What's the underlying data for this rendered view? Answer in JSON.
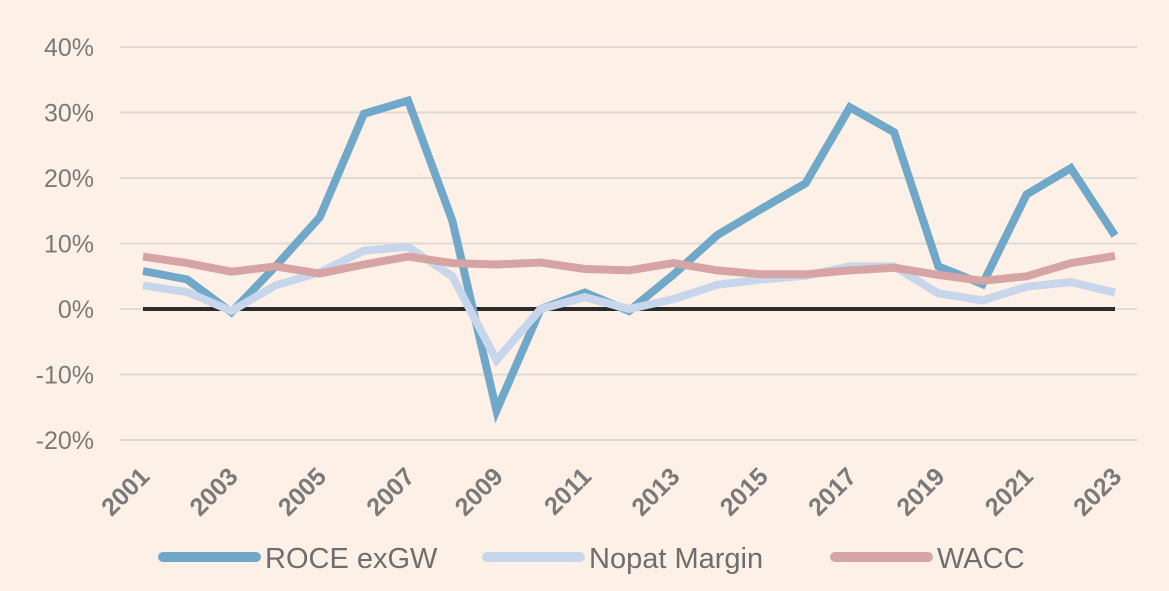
{
  "chart_data": {
    "type": "line",
    "x": [
      "2001",
      "2002",
      "2003",
      "2004",
      "2005",
      "2006",
      "2007",
      "2008",
      "2009",
      "2010",
      "2011",
      "2012",
      "2013",
      "2014",
      "2015",
      "2016",
      "2017",
      "2018",
      "2019",
      "2020",
      "2021",
      "2022",
      "2023"
    ],
    "x_tick_labels": [
      "2001",
      "2003",
      "2005",
      "2007",
      "2009",
      "2011",
      "2013",
      "2015",
      "2017",
      "2019",
      "2021",
      "2023"
    ],
    "y_tick_labels": [
      "40%",
      "30%",
      "20%",
      "10%",
      "0%",
      "-10%",
      "-20%"
    ],
    "y_tick_values": [
      40,
      30,
      20,
      10,
      0,
      -10,
      -20
    ],
    "ylim": [
      -20,
      40
    ],
    "grid": true,
    "legend_position": "bottom",
    "series": [
      {
        "name": "ROCE exGW",
        "color": "#6fa8c8",
        "values": [
          5.8,
          4.5,
          -0.5,
          6.5,
          14,
          29.8,
          31.8,
          13.5,
          -15.5,
          0,
          2.5,
          -0.3,
          5.2,
          11.3,
          15.3,
          19.2,
          30.8,
          27,
          6.5,
          3.8,
          17.5,
          21.5,
          11.2
        ]
      },
      {
        "name": "Nopat Margin",
        "color": "#c8d6ec",
        "values": [
          3.6,
          2.6,
          -0.3,
          3.6,
          5.6,
          8.9,
          9.5,
          5,
          -7.8,
          0,
          1.8,
          0,
          1.5,
          3.7,
          4.5,
          5.1,
          6.5,
          6.5,
          2.4,
          1.3,
          3.4,
          4.1,
          2.5
        ]
      },
      {
        "name": "WACC",
        "color": "#d6a4a4",
        "values": [
          8,
          7,
          5.7,
          6.5,
          5.4,
          6.8,
          8,
          7,
          6.8,
          7.1,
          6.1,
          5.9,
          7,
          5.9,
          5.3,
          5.3,
          5.9,
          6.3,
          5.2,
          4.3,
          5,
          7,
          8.1
        ]
      }
    ]
  }
}
